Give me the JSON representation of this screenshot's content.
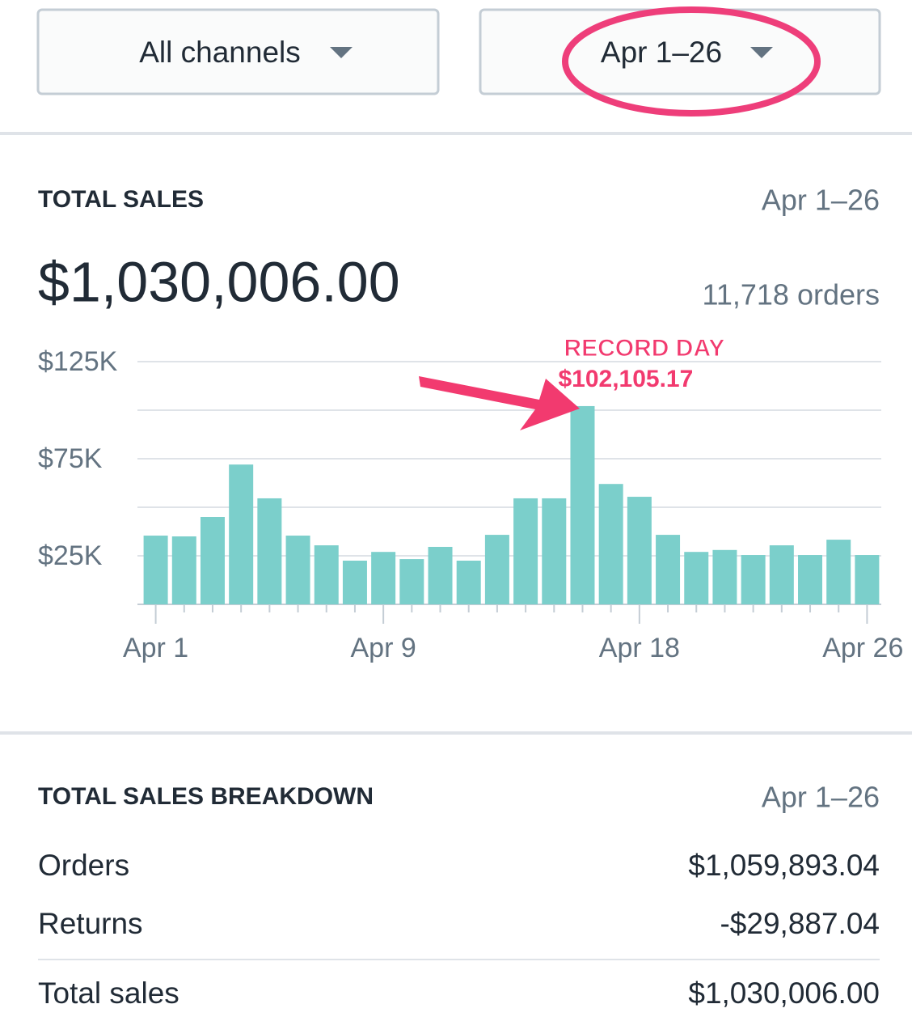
{
  "filters": {
    "channel": "All channels",
    "date_range": "Apr 1–26"
  },
  "total_sales": {
    "title": "TOTAL SALES",
    "date_range": "Apr 1–26",
    "amount": "$1,030,006.00",
    "orders": "11,718 orders"
  },
  "chart_data": {
    "type": "bar",
    "categories": [
      "Apr 1",
      null,
      null,
      null,
      null,
      null,
      null,
      null,
      "Apr 9",
      null,
      null,
      null,
      null,
      null,
      null,
      null,
      null,
      "Apr 18",
      null,
      null,
      null,
      null,
      null,
      null,
      null,
      "Apr 26"
    ],
    "values": [
      35400,
      35000,
      45000,
      72000,
      54600,
      35400,
      30400,
      22500,
      27000,
      23300,
      29600,
      22500,
      35800,
      54600,
      54600,
      102105.17,
      62000,
      55400,
      35800,
      27000,
      28000,
      25400,
      30400,
      25400,
      33300,
      25400
    ],
    "value_labels": [
      null,
      null,
      null,
      null,
      null,
      null,
      null,
      null,
      null,
      null,
      null,
      null,
      null,
      null,
      null,
      "$102,105.17",
      null,
      null,
      null,
      null,
      null,
      null,
      null,
      null,
      null,
      null
    ],
    "annotation": "RECORD DAY",
    "color": "#7bcfcb",
    "ylim": [
      0,
      125000
    ],
    "yticks": [
      {
        "value": 25000,
        "label": "$25K"
      },
      {
        "value": 50000,
        "label": null
      },
      {
        "value": 75000,
        "label": "$75K"
      },
      {
        "value": 100000,
        "label": null
      },
      {
        "value": 125000,
        "label": "$125K"
      }
    ],
    "grid": true
  },
  "breakdown": {
    "title": "TOTAL SALES BREAKDOWN",
    "date_range": "Apr 1–26",
    "rows": [
      [
        "Orders",
        "$1,059,893.04"
      ],
      [
        "Returns",
        "-$29,887.04"
      ],
      [
        "Total sales",
        "$1,030,006.00"
      ]
    ]
  }
}
